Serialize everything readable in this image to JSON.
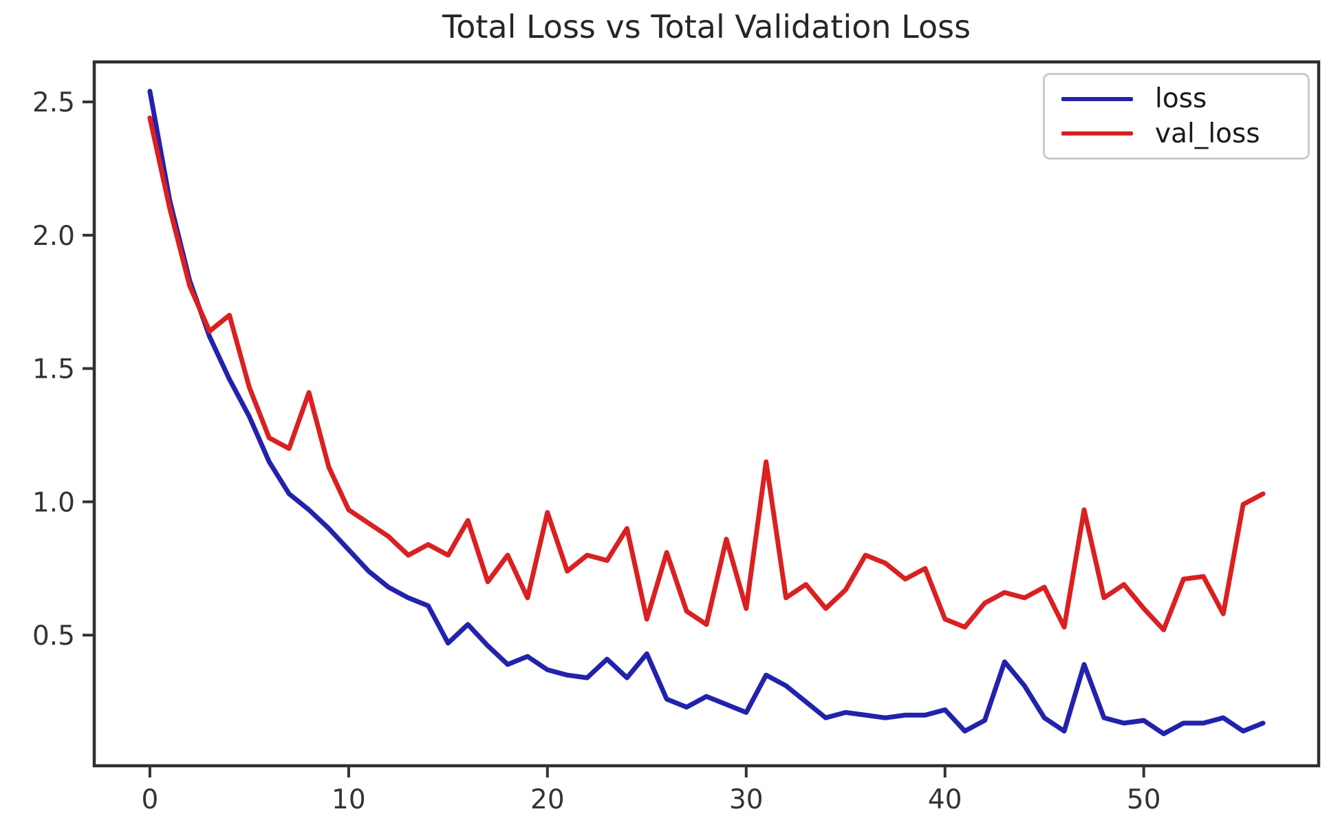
{
  "figure": {
    "background": "#ffffff",
    "spine_color": "#2e2e2e",
    "tick_color": "#333333"
  },
  "chart_data": {
    "type": "line",
    "title": "Total Loss vs Total Validation Loss",
    "xlabel": "",
    "ylabel": "",
    "grid": false,
    "legend_position": "upper right",
    "xlim": [
      -2.8,
      58.8
    ],
    "ylim": [
      0.01,
      2.65
    ],
    "xticks": [
      {
        "v": 0,
        "label": "0"
      },
      {
        "v": 10,
        "label": "10"
      },
      {
        "v": 20,
        "label": "20"
      },
      {
        "v": 30,
        "label": "30"
      },
      {
        "v": 40,
        "label": "40"
      },
      {
        "v": 50,
        "label": "50"
      }
    ],
    "yticks": [
      {
        "v": 0.5,
        "label": "0.5"
      },
      {
        "v": 1.0,
        "label": "1.0"
      },
      {
        "v": 1.5,
        "label": "1.5"
      },
      {
        "v": 2.0,
        "label": "2.0"
      },
      {
        "v": 2.5,
        "label": "2.5"
      }
    ],
    "x": [
      0,
      1,
      2,
      3,
      4,
      5,
      6,
      7,
      8,
      9,
      10,
      11,
      12,
      13,
      14,
      15,
      16,
      17,
      18,
      19,
      20,
      21,
      22,
      23,
      24,
      25,
      26,
      27,
      28,
      29,
      30,
      31,
      32,
      33,
      34,
      35,
      36,
      37,
      38,
      39,
      40,
      41,
      42,
      43,
      44,
      45,
      46,
      47,
      48,
      49,
      50,
      51,
      52,
      53,
      54,
      55,
      56
    ],
    "series": [
      {
        "name": "loss",
        "color": "#2222ac",
        "values": [
          2.54,
          2.13,
          1.83,
          1.62,
          1.46,
          1.32,
          1.15,
          1.03,
          0.97,
          0.9,
          0.82,
          0.74,
          0.68,
          0.64,
          0.61,
          0.47,
          0.54,
          0.46,
          0.39,
          0.42,
          0.37,
          0.35,
          0.34,
          0.41,
          0.34,
          0.43,
          0.26,
          0.23,
          0.27,
          0.24,
          0.21,
          0.35,
          0.31,
          0.25,
          0.19,
          0.21,
          0.2,
          0.19,
          0.2,
          0.2,
          0.22,
          0.14,
          0.18,
          0.4,
          0.31,
          0.19,
          0.14,
          0.39,
          0.19,
          0.17,
          0.18,
          0.13,
          0.17,
          0.17,
          0.19,
          0.14,
          0.17
        ]
      },
      {
        "name": "val_loss",
        "color": "#da2020",
        "values": [
          2.44,
          2.1,
          1.81,
          1.64,
          1.7,
          1.43,
          1.24,
          1.2,
          1.41,
          1.13,
          0.97,
          0.92,
          0.87,
          0.8,
          0.84,
          0.8,
          0.93,
          0.7,
          0.8,
          0.64,
          0.96,
          0.74,
          0.8,
          0.78,
          0.9,
          0.56,
          0.81,
          0.59,
          0.54,
          0.86,
          0.6,
          1.15,
          0.64,
          0.69,
          0.6,
          0.67,
          0.8,
          0.77,
          0.71,
          0.75,
          0.56,
          0.53,
          0.62,
          0.66,
          0.64,
          0.68,
          0.53,
          0.97,
          0.64,
          0.69,
          0.6,
          0.52,
          0.71,
          0.72,
          0.58,
          0.99,
          1.03
        ]
      }
    ]
  }
}
